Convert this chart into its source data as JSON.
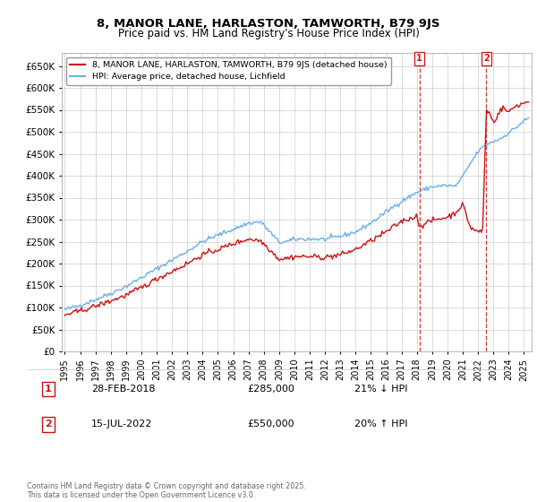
{
  "title": "8, MANOR LANE, HARLASTON, TAMWORTH, B79 9JS",
  "subtitle": "Price paid vs. HM Land Registry's House Price Index (HPI)",
  "ylim": [
    0,
    680000
  ],
  "yticks": [
    0,
    50000,
    100000,
    150000,
    200000,
    250000,
    300000,
    350000,
    400000,
    450000,
    500000,
    550000,
    600000,
    650000
  ],
  "ytick_labels": [
    "£0",
    "£50K",
    "£100K",
    "£150K",
    "£200K",
    "£250K",
    "£300K",
    "£350K",
    "£400K",
    "£450K",
    "£500K",
    "£550K",
    "£600K",
    "£650K"
  ],
  "hpi_color": "#6aaee8",
  "price_color": "#cc1111",
  "vline_color": "#cc1111",
  "background_color": "#ffffff",
  "grid_color": "#cccccc",
  "legend_label_price": "8, MANOR LANE, HARLASTON, TAMWORTH, B79 9JS (detached house)",
  "legend_label_hpi": "HPI: Average price, detached house, Lichfield",
  "annotation1_label": "1",
  "annotation1_date": "28-FEB-2018",
  "annotation1_price": "£285,000",
  "annotation1_change": "21% ↓ HPI",
  "annotation2_label": "2",
  "annotation2_date": "15-JUL-2022",
  "annotation2_price": "£550,000",
  "annotation2_change": "20% ↑ HPI",
  "footnote": "Contains HM Land Registry data © Crown copyright and database right 2025.\nThis data is licensed under the Open Government Licence v3.0.",
  "marker1_x": 2018.17,
  "marker2_x": 2022.54,
  "xmin": 1994.8,
  "xmax": 2025.5,
  "xticks": [
    1995,
    1996,
    1997,
    1998,
    1999,
    2000,
    2001,
    2002,
    2003,
    2004,
    2005,
    2006,
    2007,
    2008,
    2009,
    2010,
    2011,
    2012,
    2013,
    2014,
    2015,
    2016,
    2017,
    2018,
    2019,
    2020,
    2021,
    2022,
    2023,
    2024,
    2025
  ]
}
